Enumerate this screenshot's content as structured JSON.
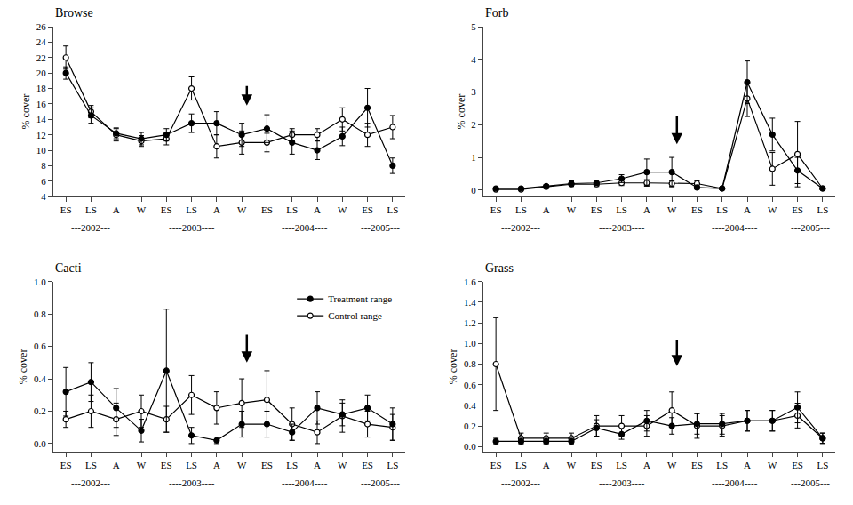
{
  "chart_data": [
    {
      "type": "line",
      "title": "Browse",
      "y_label": "% cover",
      "categories": [
        "ES",
        "LS",
        "A",
        "W",
        "ES",
        "LS",
        "A",
        "W",
        "ES",
        "LS",
        "A",
        "W",
        "ES",
        "LS"
      ],
      "series": [
        {
          "name": "Control range",
          "color": "#000000",
          "marker": "open",
          "values": [
            22.0,
            15.0,
            12.0,
            11.2,
            11.5,
            18.0,
            10.5,
            11.0,
            11.0,
            12.0,
            12.0,
            14.0,
            12.0,
            13.0
          ],
          "errors": [
            1.5,
            0.8,
            0.8,
            0.7,
            0.8,
            1.5,
            1.5,
            1.5,
            1.2,
            0.8,
            0.8,
            1.5,
            1.5,
            1.5
          ]
        },
        {
          "name": "Treatment range",
          "color": "#000000",
          "marker": "filled",
          "values": [
            20.0,
            14.5,
            12.2,
            11.5,
            12.0,
            13.5,
            13.5,
            12.0,
            12.8,
            11.0,
            10.0,
            11.8,
            15.5,
            8.0
          ],
          "errors": [
            0.8,
            1.0,
            0.7,
            0.8,
            0.8,
            1.2,
            1.5,
            1.5,
            1.8,
            1.5,
            1.2,
            1.2,
            2.5,
            1.0
          ]
        }
      ],
      "ylim": [
        4,
        26
      ],
      "yticks": [
        4,
        6,
        8,
        10,
        12,
        14,
        16,
        18,
        20,
        22,
        24,
        26
      ],
      "grid": false,
      "annotations": [
        {
          "type": "arrow",
          "x": 7.2,
          "y_tip": 15.8,
          "y_tail": 18.5
        },
        {
          "text": "---2002---",
          "x": 1.0
        },
        {
          "text": "----2003----",
          "x": 5.0
        },
        {
          "text": "----2004----",
          "x": 9.5
        },
        {
          "text": "---2005---",
          "x": 12.5
        }
      ]
    },
    {
      "type": "line",
      "title": "Forb",
      "y_label": "% cover",
      "categories": [
        "ES",
        "LS",
        "A",
        "W",
        "ES",
        "LS",
        "A",
        "W",
        "ES",
        "LS",
        "A",
        "W",
        "ES",
        "LS"
      ],
      "series": [
        {
          "name": "Control range",
          "color": "#000000",
          "marker": "open",
          "values": [
            0.02,
            0.02,
            0.1,
            0.18,
            0.18,
            0.22,
            0.22,
            0.2,
            0.2,
            0.05,
            2.8,
            0.65,
            1.1,
            0.05
          ],
          "errors": [
            0.02,
            0.02,
            0.05,
            0.07,
            0.07,
            0.08,
            0.1,
            0.08,
            0.08,
            0.03,
            0.55,
            0.5,
            1.0,
            0.03
          ]
        },
        {
          "name": "Treatment range",
          "color": "#000000",
          "marker": "filled",
          "values": [
            0.05,
            0.05,
            0.12,
            0.2,
            0.22,
            0.35,
            0.55,
            0.55,
            0.08,
            0.05,
            3.3,
            1.7,
            0.6,
            0.05
          ],
          "errors": [
            0.03,
            0.03,
            0.05,
            0.08,
            0.08,
            0.12,
            0.4,
            0.45,
            0.05,
            0.03,
            0.65,
            0.5,
            0.4,
            0.03
          ]
        }
      ],
      "ylim": [
        -0.2,
        5
      ],
      "yticks": [
        0,
        1,
        2,
        3,
        4,
        5
      ],
      "grid": false,
      "annotations": [
        {
          "type": "arrow",
          "x": 7.2,
          "y_tip": 1.4,
          "y_tail": 2.3
        },
        {
          "text": "---2002---",
          "x": 1.0
        },
        {
          "text": "----2003----",
          "x": 5.0
        },
        {
          "text": "----2004----",
          "x": 9.5
        },
        {
          "text": "---2005---",
          "x": 12.5
        }
      ]
    },
    {
      "type": "line",
      "title": "Cacti",
      "y_label": "% cover",
      "categories": [
        "ES",
        "LS",
        "A",
        "W",
        "ES",
        "LS",
        "A",
        "W",
        "ES",
        "LS",
        "A",
        "W",
        "ES",
        "LS"
      ],
      "series": [
        {
          "name": "Control range",
          "color": "#000000",
          "marker": "open",
          "values": [
            0.15,
            0.2,
            0.15,
            0.2,
            0.15,
            0.3,
            0.22,
            0.25,
            0.27,
            0.12,
            0.07,
            0.17,
            0.12,
            0.1
          ],
          "errors": [
            0.05,
            0.1,
            0.1,
            0.1,
            0.08,
            0.12,
            0.1,
            0.15,
            0.18,
            0.1,
            0.07,
            0.1,
            0.08,
            0.08
          ]
        },
        {
          "name": "Treatment range",
          "color": "#000000",
          "marker": "filled",
          "values": [
            0.32,
            0.38,
            0.22,
            0.08,
            0.45,
            0.05,
            0.02,
            0.12,
            0.12,
            0.07,
            0.22,
            0.18,
            0.22,
            0.12
          ],
          "errors": [
            0.15,
            0.12,
            0.12,
            0.07,
            0.38,
            0.05,
            0.02,
            0.08,
            0.08,
            0.05,
            0.1,
            0.07,
            0.08,
            0.1
          ]
        }
      ],
      "ylim": [
        -0.05,
        1.0
      ],
      "yticks": [
        {
          "value": 0.0,
          "label": "0.0"
        },
        0.2,
        0.4,
        0.6,
        0.8,
        {
          "value": 1.0,
          "label": "1.0"
        }
      ],
      "grid": false,
      "legend": "upper right",
      "annotations": [
        {
          "type": "arrow",
          "x": 7.2,
          "y_tip": 0.5,
          "y_tail": 0.68
        },
        {
          "text": "---2002---",
          "x": 1.0
        },
        {
          "text": "----2003----",
          "x": 5.0
        },
        {
          "text": "----2004----",
          "x": 9.5
        },
        {
          "text": "---2005---",
          "x": 12.5
        }
      ]
    },
    {
      "type": "line",
      "title": "Grass",
      "y_label": "% cover",
      "categories": [
        "ES",
        "LS",
        "A",
        "W",
        "ES",
        "LS",
        "A",
        "W",
        "ES",
        "LS",
        "A",
        "W",
        "ES",
        "LS"
      ],
      "series": [
        {
          "name": "Control range",
          "color": "#000000",
          "marker": "open",
          "values": [
            0.8,
            0.08,
            0.08,
            0.08,
            0.2,
            0.2,
            0.2,
            0.35,
            0.2,
            0.2,
            0.25,
            0.25,
            0.3,
            0.08
          ],
          "errors": [
            0.45,
            0.05,
            0.05,
            0.05,
            0.1,
            0.1,
            0.1,
            0.18,
            0.12,
            0.1,
            0.1,
            0.1,
            0.12,
            0.05
          ]
        },
        {
          "name": "Treatment range",
          "color": "#000000",
          "marker": "filled",
          "values": [
            0.05,
            0.05,
            0.05,
            0.05,
            0.18,
            0.12,
            0.25,
            0.2,
            0.22,
            0.22,
            0.25,
            0.25,
            0.38,
            0.08
          ],
          "errors": [
            0.03,
            0.03,
            0.03,
            0.03,
            0.08,
            0.05,
            0.1,
            0.08,
            0.1,
            0.1,
            0.1,
            0.1,
            0.15,
            0.05
          ]
        }
      ],
      "ylim": [
        -0.05,
        1.6
      ],
      "yticks": [
        {
          "value": 0.0,
          "label": "0.0"
        },
        0.2,
        0.4,
        0.6,
        0.8,
        {
          "value": 1.0,
          "label": "1.0"
        },
        1.2,
        1.4,
        1.6
      ],
      "grid": false,
      "annotations": [
        {
          "type": "arrow",
          "x": 7.2,
          "y_tip": 0.78,
          "y_tail": 1.05
        },
        {
          "text": "---2002---",
          "x": 1.0
        },
        {
          "text": "----2003----",
          "x": 5.0
        },
        {
          "text": "----2004----",
          "x": 9.5
        },
        {
          "text": "---2005---",
          "x": 12.5
        }
      ]
    }
  ]
}
